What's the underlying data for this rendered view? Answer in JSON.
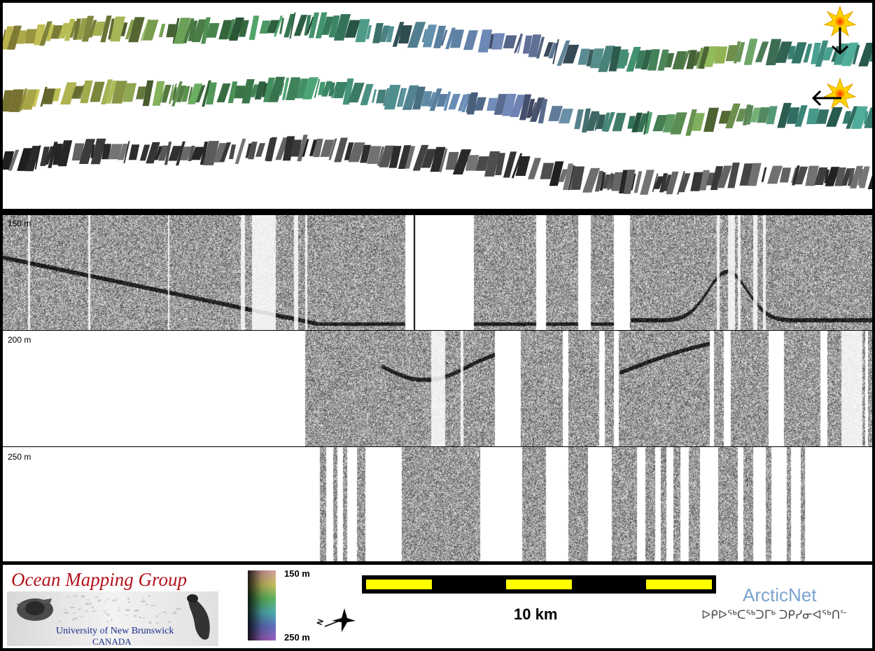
{
  "profile": {
    "depth_labels": [
      "150 m",
      "200 m",
      "250 m"
    ]
  },
  "footer": {
    "logo_title": "Ocean Mapping Group",
    "logo_university": "University of New Brunswick",
    "logo_country": "CANADA",
    "colorbar": {
      "top_label": "150 m",
      "bottom_label": "250 m"
    },
    "scalebar": {
      "label": "10 km"
    },
    "arcticnet": {
      "name": "ArcticNet",
      "syllabics": "ᐅᑭᐅᖅᑕᖅᑐᒥᒃ ᑐᑭᓯᓂᐊᖅᑎᓪ"
    },
    "compass_letter": "N"
  },
  "colors": {
    "logo_red": "#b5121b",
    "logo_blue": "#1b2a8a",
    "scale_yellow": "#ffff00",
    "arcticnet_blue": "#7ba3cf",
    "syllabics_gray": "#555555"
  }
}
